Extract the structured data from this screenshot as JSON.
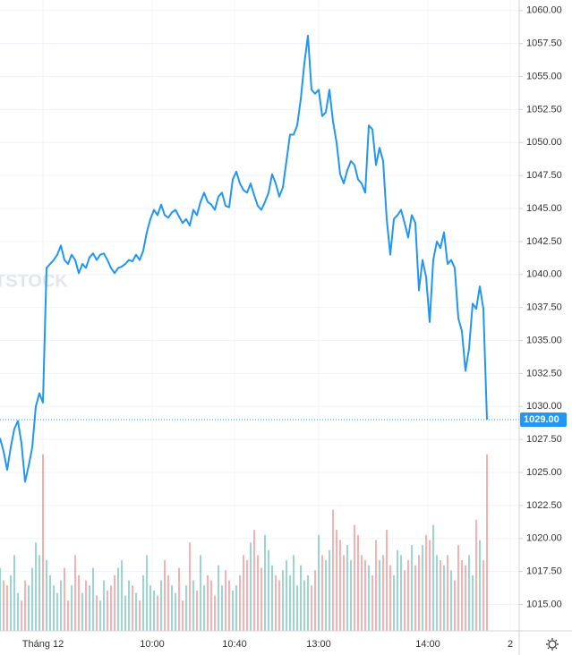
{
  "chart_data": {
    "type": "line",
    "watermark": "TSTOCK",
    "series": [
      {
        "color": "#2196f3",
        "values": [
          1027.6,
          1026.6,
          1025.2,
          1026.9,
          1028.3,
          1028.9,
          1027.2,
          1024.3,
          1025.5,
          1026.9,
          1030.0,
          1031.0,
          1030.3,
          1040.5,
          1040.8,
          1041.1,
          1041.5,
          1042.2,
          1041.1,
          1040.8,
          1041.5,
          1041.1,
          1040.1,
          1040.8,
          1040.5,
          1041.3,
          1041.6,
          1041.1,
          1041.5,
          1041.6,
          1041.1,
          1040.5,
          1040.1,
          1040.5,
          1040.6,
          1040.8,
          1041.1,
          1041.0,
          1041.5,
          1041.1,
          1041.8,
          1043.2,
          1044.2,
          1044.9,
          1044.5,
          1045.3,
          1044.5,
          1044.3,
          1044.7,
          1044.9,
          1044.4,
          1043.9,
          1044.2,
          1043.7,
          1044.9,
          1044.5,
          1045.5,
          1046.2,
          1045.5,
          1045.3,
          1044.9,
          1045.9,
          1046.2,
          1045.2,
          1045.1,
          1047.2,
          1047.8,
          1046.9,
          1046.4,
          1046.2,
          1046.9,
          1046.0,
          1045.2,
          1044.9,
          1045.5,
          1046.2,
          1047.6,
          1046.9,
          1045.9,
          1046.6,
          1048.6,
          1050.6,
          1050.6,
          1051.3,
          1053.3,
          1056.0,
          1058.1,
          1054.0,
          1053.7,
          1054.0,
          1052.0,
          1052.3,
          1054.0,
          1051.6,
          1050.0,
          1047.6,
          1046.9,
          1047.9,
          1048.6,
          1048.3,
          1047.2,
          1046.9,
          1046.2,
          1051.3,
          1051.0,
          1048.3,
          1049.6,
          1048.6,
          1044.2,
          1041.5,
          1044.2,
          1044.5,
          1044.9,
          1043.9,
          1042.8,
          1044.5,
          1043.9,
          1038.8,
          1041.1,
          1039.8,
          1036.4,
          1041.1,
          1042.5,
          1042.0,
          1043.2,
          1040.8,
          1041.1,
          1040.5,
          1036.7,
          1035.7,
          1032.7,
          1034.4,
          1037.8,
          1037.4,
          1039.1,
          1037.4,
          1029.0
        ],
        "last_label": "1029.00"
      },
      {
        "type": "bar",
        "axis": "y2",
        "colors": [
          "#26a69a",
          "#ef5350"
        ],
        "values": [
          25,
          20,
          18,
          22,
          30,
          15,
          12,
          20,
          18,
          25,
          35,
          30,
          70,
          28,
          22,
          18,
          15,
          20,
          25,
          12,
          18,
          30,
          22,
          15,
          20,
          18,
          25,
          14,
          12,
          20,
          16,
          18,
          22,
          25,
          28,
          14,
          20,
          18,
          15,
          12,
          22,
          30,
          18,
          16,
          14,
          20,
          28,
          22,
          18,
          15,
          25,
          12,
          18,
          35,
          20,
          16,
          30,
          18,
          22,
          20,
          14,
          26,
          18,
          24,
          20,
          16,
          18,
          22,
          30,
          28,
          35,
          40,
          30,
          25,
          38,
          32,
          26,
          22,
          20,
          24,
          28,
          22,
          30,
          18,
          26,
          20,
          22,
          18,
          24,
          38,
          30,
          28,
          32,
          48,
          40,
          36,
          30,
          34,
          28,
          42,
          38,
          30,
          28,
          26,
          22,
          36,
          28,
          30,
          40,
          26,
          22,
          32,
          30,
          24,
          28,
          34,
          26,
          30,
          34,
          38,
          36,
          42,
          30,
          28,
          26,
          30,
          24,
          20,
          34,
          28,
          26,
          30,
          22,
          44,
          36,
          28,
          70
        ]
      }
    ],
    "xlim": [
      0,
      145
    ],
    "xticks": [
      {
        "value": 12,
        "label": "Tháng 12"
      },
      {
        "value": 42.5,
        "label": "10:00"
      },
      {
        "value": 65.5,
        "label": "10:40"
      },
      {
        "value": 89,
        "label": "13:00"
      },
      {
        "value": 119.5,
        "label": "14:00"
      },
      {
        "value": 142.5,
        "label": "2"
      }
    ],
    "ylim": [
      1013,
      1060.8
    ],
    "yticks": [
      {
        "value": 1015,
        "label": "1015.00"
      },
      {
        "value": 1017.5,
        "label": "1017.50"
      },
      {
        "value": 1020,
        "label": "1020.00"
      },
      {
        "value": 1022.5,
        "label": "1022.50"
      },
      {
        "value": 1025,
        "label": "1025.00"
      },
      {
        "value": 1027.5,
        "label": "1027.50"
      },
      {
        "value": 1030,
        "label": "1030.00"
      },
      {
        "value": 1032.5,
        "label": "1032.50"
      },
      {
        "value": 1035,
        "label": "1035.00"
      },
      {
        "value": 1037.5,
        "label": "1037.50"
      },
      {
        "value": 1040,
        "label": "1040.00"
      },
      {
        "value": 1042.5,
        "label": "1042.50"
      },
      {
        "value": 1045,
        "label": "1045.00"
      },
      {
        "value": 1047.5,
        "label": "1047.50"
      },
      {
        "value": 1050,
        "label": "1050.00"
      },
      {
        "value": 1052.5,
        "label": "1052.50"
      },
      {
        "value": 1055,
        "label": "1055.00"
      },
      {
        "value": 1057.5,
        "label": "1057.50"
      },
      {
        "value": 1060,
        "label": "1060.00"
      }
    ],
    "y2lim": [
      0,
      250
    ],
    "grid": true
  }
}
